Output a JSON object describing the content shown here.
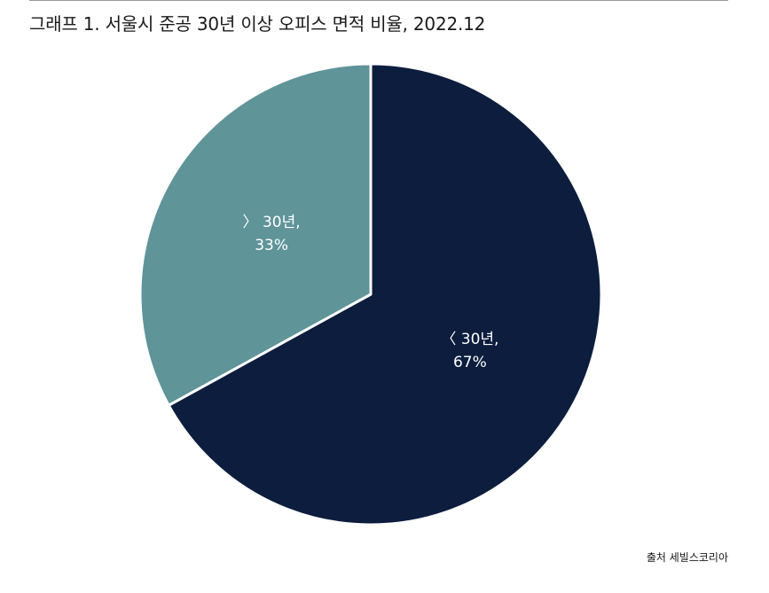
{
  "title": "그래프 1. 서울시 준공 30년 이상 오피스 면적 비율, 2022.12",
  "source": "출처 세빌스코리아",
  "colors": {
    "dark_navy": "#0d1d3d",
    "teal": "#5f9499",
    "divider": "#ffffff"
  },
  "chart_data": {
    "type": "pie",
    "slices": [
      {
        "label_line1": "〈 30년,",
        "label_line2": "67%",
        "value": 67,
        "color": "#0d1d3d"
      },
      {
        "label_line1": "〉 30년,",
        "label_line2": "33%",
        "value": 33,
        "color": "#5f9499"
      }
    ],
    "start_angle_deg": 0,
    "direction": "clockwise"
  }
}
